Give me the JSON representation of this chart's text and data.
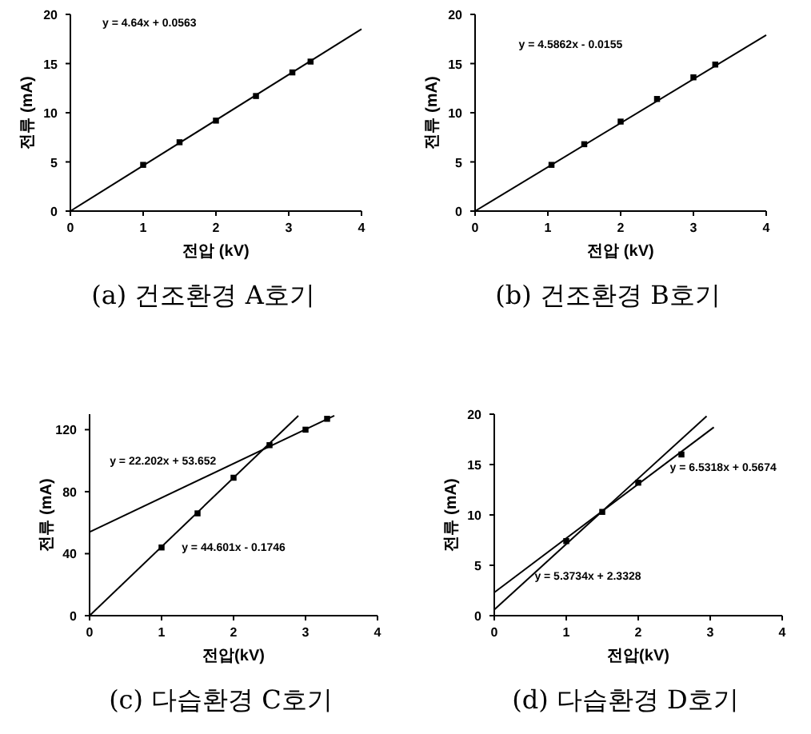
{
  "chart_data": [
    {
      "type": "scatter",
      "title": "(a) 건조환경 A호기",
      "xlabel": "전압 (kV)",
      "ylabel": "전류 (mA)",
      "xlim": [
        0,
        4
      ],
      "ylim": [
        0,
        20
      ],
      "xticks": [
        0,
        1,
        2,
        3,
        4
      ],
      "yticks": [
        0,
        5,
        10,
        15,
        20
      ],
      "series": [
        {
          "type": "scatter",
          "marker": "square",
          "color": "#000000",
          "x": [
            1.0,
            1.5,
            2.0,
            2.55,
            3.05,
            3.3
          ],
          "values": [
            4.7,
            7.0,
            9.2,
            11.7,
            14.1,
            15.2
          ]
        },
        {
          "type": "line",
          "marker": "none",
          "color": "#000000",
          "x": [
            0,
            4
          ],
          "values": [
            0,
            18.5
          ]
        }
      ],
      "annotations": [
        "y = 4.64x + 0.0563"
      ]
    },
    {
      "type": "scatter",
      "title": "(b) 건조환경 B호기",
      "xlabel": "전압 (kV)",
      "ylabel": "전류 (mA)",
      "xlim": [
        0,
        4
      ],
      "ylim": [
        0,
        20
      ],
      "xticks": [
        0,
        1,
        2,
        3,
        4
      ],
      "yticks": [
        0,
        5,
        10,
        15,
        20
      ],
      "series": [
        {
          "type": "scatter",
          "marker": "square",
          "color": "#000000",
          "x": [
            1.05,
            1.5,
            2.0,
            2.5,
            3.0,
            3.3
          ],
          "values": [
            4.7,
            6.8,
            9.1,
            11.4,
            13.6,
            14.9
          ]
        },
        {
          "type": "line",
          "marker": "none",
          "color": "#000000",
          "x": [
            0,
            4
          ],
          "values": [
            0,
            17.9
          ]
        }
      ],
      "annotations": [
        "y = 4.5862x - 0.0155"
      ]
    },
    {
      "type": "scatter",
      "title": "(c) 다습환경 C호기",
      "xlabel": "전압(kV)",
      "ylabel": "전류 (mA)",
      "xlim": [
        0,
        4
      ],
      "ylim": [
        0,
        130
      ],
      "xticks": [
        0,
        1,
        2,
        3,
        4
      ],
      "yticks": [
        0,
        40,
        80,
        120
      ],
      "series": [
        {
          "type": "scatter",
          "marker": "square",
          "color": "#000000",
          "x": [
            1.0,
            1.5,
            2.0,
            2.5,
            3.0,
            3.3
          ],
          "values": [
            44,
            66,
            89,
            110,
            120,
            127
          ]
        },
        {
          "type": "line",
          "marker": "none",
          "color": "#000000",
          "x": [
            0,
            2.9
          ],
          "values": [
            0,
            129
          ]
        },
        {
          "type": "line",
          "marker": "none",
          "color": "#000000",
          "x": [
            0,
            3.4
          ],
          "values": [
            54,
            129
          ]
        }
      ],
      "annotations": [
        "y = 22.202x + 53.652",
        "y = 44.601x - 0.1746"
      ]
    },
    {
      "type": "scatter",
      "title": "(d) 다습환경 D호기",
      "xlabel": "전압(kV)",
      "ylabel": "전류 (mA)",
      "xlim": [
        0,
        4
      ],
      "ylim": [
        0,
        20
      ],
      "xticks": [
        0,
        1,
        2,
        3,
        4
      ],
      "yticks": [
        0,
        5,
        10,
        15,
        20
      ],
      "series": [
        {
          "type": "scatter",
          "marker": "square",
          "color": "#000000",
          "x": [
            1.0,
            1.5,
            2.0,
            2.6
          ],
          "values": [
            7.4,
            10.3,
            13.2,
            16.0
          ]
        },
        {
          "type": "line",
          "marker": "none",
          "color": "#000000",
          "x": [
            0,
            2.95
          ],
          "values": [
            0.6,
            19.8
          ]
        },
        {
          "type": "line",
          "marker": "none",
          "color": "#000000",
          "x": [
            0,
            3.05
          ],
          "values": [
            2.3,
            18.7
          ]
        }
      ],
      "annotations": [
        "y = 6.5318x + 0.5674",
        "y = 5.3734x + 2.3328"
      ]
    }
  ]
}
